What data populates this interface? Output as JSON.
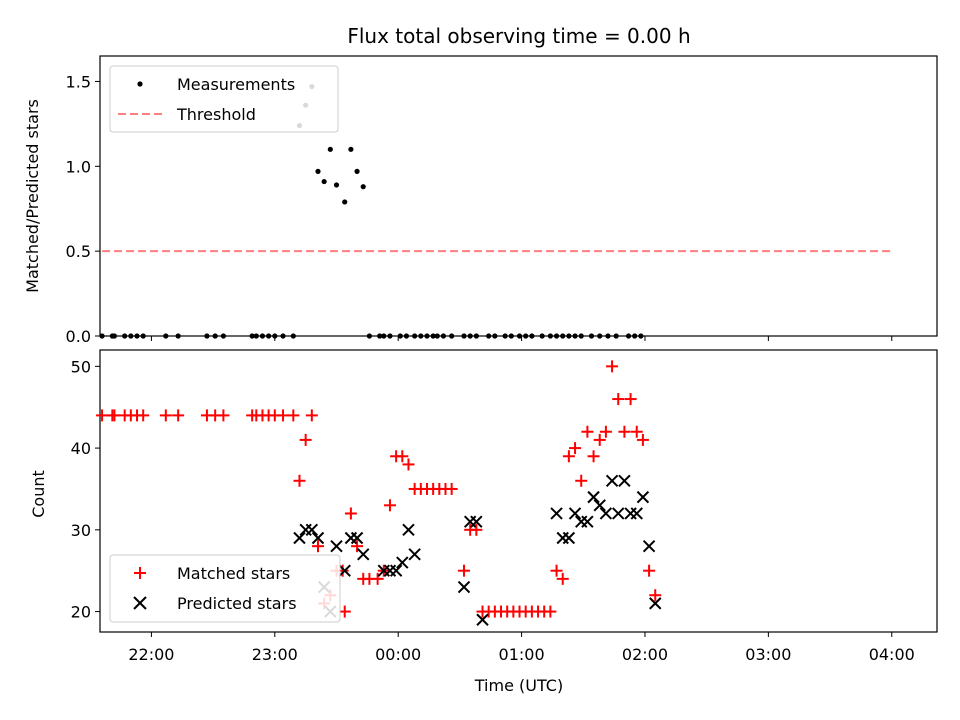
{
  "chart_data": [
    {
      "type": "scatter",
      "title": "Flux total observing time = 0.00 h",
      "xlabel": "",
      "ylabel": "Matched/Predicted stars",
      "xlim": [
        "21:35",
        "04:22"
      ],
      "ylim": [
        0,
        1.65
      ],
      "yticks": [
        "0.0",
        "0.5",
        "1.0",
        "1.5"
      ],
      "legend_position": "top-left",
      "legend": [
        {
          "label": "Measurements",
          "marker": "dot",
          "color": "#000000"
        },
        {
          "label": "Threshold",
          "marker": "dashed-line",
          "color": "#ff7f7f"
        }
      ],
      "threshold": {
        "value": 0.5,
        "from": "21:36",
        "to": "04:01"
      },
      "series": [
        {
          "name": "Measurements",
          "color": "#000000",
          "points": [
            [
              "21:36",
              0
            ],
            [
              "21:41",
              0
            ],
            [
              "21:42",
              0
            ],
            [
              "21:47",
              0
            ],
            [
              "21:50",
              0
            ],
            [
              "21:53",
              0
            ],
            [
              "21:56",
              0
            ],
            [
              "22:07",
              0
            ],
            [
              "22:13",
              0
            ],
            [
              "22:27",
              0
            ],
            [
              "22:31",
              0
            ],
            [
              "22:35",
              0
            ],
            [
              "22:49",
              0
            ],
            [
              "22:51",
              0
            ],
            [
              "22:54",
              0
            ],
            [
              "22:57",
              0
            ],
            [
              "23:00",
              0
            ],
            [
              "23:04",
              0
            ],
            [
              "23:09",
              0
            ],
            [
              "23:12",
              1.24
            ],
            [
              "23:15",
              1.36
            ],
            [
              "23:18",
              1.47
            ],
            [
              "23:21",
              0.97
            ],
            [
              "23:24",
              0.91
            ],
            [
              "23:27",
              1.1
            ],
            [
              "23:30",
              0.89
            ],
            [
              "23:34",
              0.79
            ],
            [
              "23:37",
              1.1
            ],
            [
              "23:40",
              0.97
            ],
            [
              "23:43",
              0.88
            ],
            [
              "23:46",
              0
            ],
            [
              "23:51",
              0
            ],
            [
              "23:53",
              0
            ],
            [
              "23:56",
              0
            ],
            [
              "00:01",
              0
            ],
            [
              "00:04",
              0
            ],
            [
              "00:08",
              0
            ],
            [
              "00:11",
              0
            ],
            [
              "00:14",
              0
            ],
            [
              "00:17",
              0
            ],
            [
              "00:19",
              0
            ],
            [
              "00:22",
              0
            ],
            [
              "00:26",
              0
            ],
            [
              "00:32",
              0
            ],
            [
              "00:35",
              0
            ],
            [
              "00:38",
              0
            ],
            [
              "00:44",
              0
            ],
            [
              "00:47",
              0
            ],
            [
              "00:52",
              0
            ],
            [
              "00:55",
              0
            ],
            [
              "00:59",
              0
            ],
            [
              "01:02",
              0
            ],
            [
              "01:05",
              0
            ],
            [
              "01:10",
              0
            ],
            [
              "01:14",
              0
            ],
            [
              "01:17",
              0
            ],
            [
              "01:20",
              0
            ],
            [
              "01:23",
              0
            ],
            [
              "01:26",
              0
            ],
            [
              "01:29",
              0
            ],
            [
              "01:34",
              0
            ],
            [
              "01:38",
              0
            ],
            [
              "01:42",
              0
            ],
            [
              "01:46",
              0
            ],
            [
              "01:52",
              0
            ],
            [
              "01:55",
              0
            ],
            [
              "01:58",
              0
            ]
          ]
        }
      ]
    },
    {
      "type": "scatter",
      "title": "",
      "xlabel": "Time (UTC)",
      "ylabel": "Count",
      "xlim": [
        "21:35",
        "04:22"
      ],
      "ylim": [
        17.5,
        52
      ],
      "yticks": [
        "20",
        "30",
        "40",
        "50"
      ],
      "xticks": [
        "22:00",
        "23:00",
        "00:00",
        "01:00",
        "02:00",
        "03:00",
        "04:00"
      ],
      "legend_position": "bottom-left",
      "legend": [
        {
          "label": "Matched stars",
          "marker": "plus",
          "color": "#ff0000"
        },
        {
          "label": "Predicted stars",
          "marker": "x",
          "color": "#000000"
        }
      ],
      "series": [
        {
          "name": "Matched stars",
          "color": "#ff0000",
          "marker": "plus",
          "points": [
            [
              "21:36",
              44
            ],
            [
              "21:41",
              44
            ],
            [
              "21:42",
              44
            ],
            [
              "21:47",
              44
            ],
            [
              "21:50",
              44
            ],
            [
              "21:53",
              44
            ],
            [
              "21:56",
              44
            ],
            [
              "22:07",
              44
            ],
            [
              "22:13",
              44
            ],
            [
              "22:27",
              44
            ],
            [
              "22:31",
              44
            ],
            [
              "22:35",
              44
            ],
            [
              "22:49",
              44
            ],
            [
              "22:51",
              44
            ],
            [
              "22:54",
              44
            ],
            [
              "22:57",
              44
            ],
            [
              "23:00",
              44
            ],
            [
              "23:04",
              44
            ],
            [
              "23:09",
              44
            ],
            [
              "23:12",
              36
            ],
            [
              "23:15",
              41
            ],
            [
              "23:18",
              44
            ],
            [
              "23:21",
              28
            ],
            [
              "23:24",
              21
            ],
            [
              "23:27",
              22
            ],
            [
              "23:30",
              25
            ],
            [
              "23:33",
              25
            ],
            [
              "23:34",
              20
            ],
            [
              "23:37",
              32
            ],
            [
              "23:40",
              28
            ],
            [
              "23:43",
              24
            ],
            [
              "23:46",
              24
            ],
            [
              "23:50",
              24
            ],
            [
              "23:53",
              25
            ],
            [
              "23:56",
              33
            ],
            [
              "23:59",
              39
            ],
            [
              "00:02",
              39
            ],
            [
              "00:05",
              38
            ],
            [
              "00:08",
              35
            ],
            [
              "00:11",
              35
            ],
            [
              "00:14",
              35
            ],
            [
              "00:17",
              35
            ],
            [
              "00:20",
              35
            ],
            [
              "00:23",
              35
            ],
            [
              "00:26",
              35
            ],
            [
              "00:32",
              25
            ],
            [
              "00:35",
              30
            ],
            [
              "00:38",
              30
            ],
            [
              "00:41",
              20
            ],
            [
              "00:44",
              20
            ],
            [
              "00:47",
              20
            ],
            [
              "00:50",
              20
            ],
            [
              "00:53",
              20
            ],
            [
              "00:56",
              20
            ],
            [
              "00:59",
              20
            ],
            [
              "01:02",
              20
            ],
            [
              "01:05",
              20
            ],
            [
              "01:08",
              20
            ],
            [
              "01:11",
              20
            ],
            [
              "01:14",
              20
            ],
            [
              "01:17",
              25
            ],
            [
              "01:20",
              24
            ],
            [
              "01:23",
              39
            ],
            [
              "01:26",
              40
            ],
            [
              "01:29",
              36
            ],
            [
              "01:32",
              42
            ],
            [
              "01:35",
              39
            ],
            [
              "01:38",
              41
            ],
            [
              "01:41",
              42
            ],
            [
              "01:44",
              50
            ],
            [
              "01:47",
              46
            ],
            [
              "01:50",
              42
            ],
            [
              "01:53",
              46
            ],
            [
              "01:56",
              42
            ],
            [
              "01:59",
              41
            ],
            [
              "02:02",
              25
            ],
            [
              "02:05",
              22
            ]
          ]
        },
        {
          "name": "Predicted stars",
          "color": "#000000",
          "marker": "x",
          "points": [
            [
              "23:12",
              29
            ],
            [
              "23:15",
              30
            ],
            [
              "23:18",
              30
            ],
            [
              "23:21",
              29
            ],
            [
              "23:24",
              23
            ],
            [
              "23:27",
              20
            ],
            [
              "23:30",
              28
            ],
            [
              "23:34",
              25
            ],
            [
              "23:37",
              29
            ],
            [
              "23:40",
              29
            ],
            [
              "23:43",
              27
            ],
            [
              "23:53",
              25
            ],
            [
              "23:56",
              25
            ],
            [
              "23:59",
              25
            ],
            [
              "00:02",
              26
            ],
            [
              "00:05",
              30
            ],
            [
              "00:08",
              27
            ],
            [
              "00:32",
              23
            ],
            [
              "00:35",
              31
            ],
            [
              "00:38",
              31
            ],
            [
              "00:41",
              19
            ],
            [
              "01:17",
              32
            ],
            [
              "01:20",
              29
            ],
            [
              "01:23",
              29
            ],
            [
              "01:26",
              32
            ],
            [
              "01:29",
              31
            ],
            [
              "01:32",
              31
            ],
            [
              "01:35",
              34
            ],
            [
              "01:38",
              33
            ],
            [
              "01:41",
              32
            ],
            [
              "01:44",
              36
            ],
            [
              "01:47",
              32
            ],
            [
              "01:50",
              36
            ],
            [
              "01:53",
              32
            ],
            [
              "01:56",
              32
            ],
            [
              "01:59",
              34
            ],
            [
              "02:02",
              28
            ],
            [
              "02:05",
              21
            ]
          ]
        }
      ]
    }
  ]
}
